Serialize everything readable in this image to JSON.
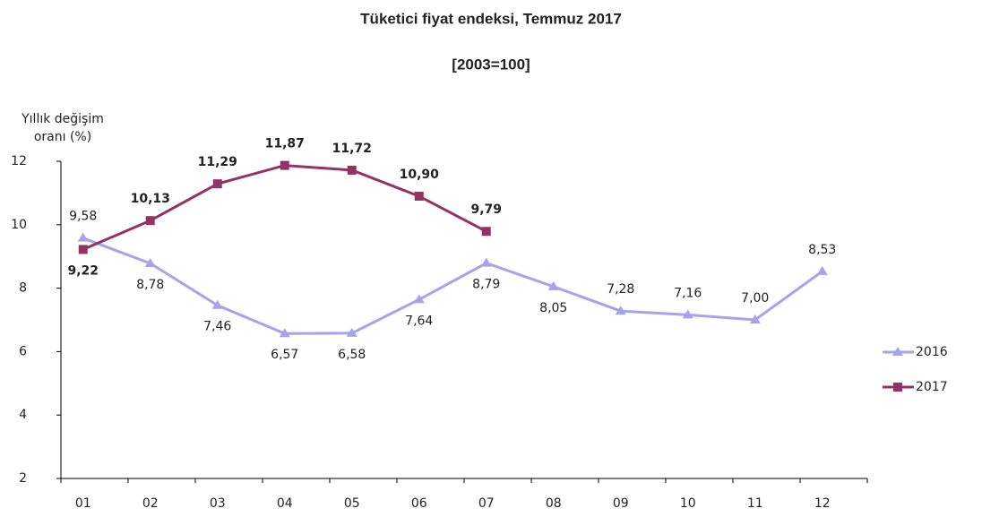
{
  "chart_data": {
    "type": "line",
    "title": "Tüketici fiyat endeksi, Temmuz 2017",
    "subtitle": "[2003=100]",
    "y_label": [
      "Yıllık değişim",
      "oranı (%)"
    ],
    "categories": [
      "01",
      "02",
      "03",
      "04",
      "05",
      "06",
      "07",
      "08",
      "09",
      "10",
      "11",
      "12"
    ],
    "series": [
      {
        "name": "2016",
        "color": "#a6a3ea",
        "marker": "triangle",
        "values": [
          9.58,
          8.78,
          7.46,
          6.57,
          6.58,
          7.64,
          8.79,
          8.05,
          7.28,
          7.16,
          7.0,
          8.53
        ],
        "value_labels": [
          "9,58",
          "8,78",
          "7,46",
          "6,57",
          "6,58",
          "7,64",
          "8,79",
          "8,05",
          "7,28",
          "7,16",
          "7,00",
          "8,53"
        ]
      },
      {
        "name": "2017",
        "color": "#953264",
        "marker": "square",
        "values": [
          9.22,
          10.13,
          11.29,
          11.87,
          11.72,
          10.9,
          9.79,
          null,
          null,
          null,
          null,
          null
        ],
        "value_labels": [
          "9,22",
          "10,13",
          "11,29",
          "11,87",
          "11,72",
          "10,90",
          "9,79",
          null,
          null,
          null,
          null,
          null
        ]
      }
    ],
    "ylim": [
      2,
      12
    ],
    "yticks": [
      2,
      4,
      6,
      8,
      10,
      12
    ],
    "legend": "right"
  }
}
